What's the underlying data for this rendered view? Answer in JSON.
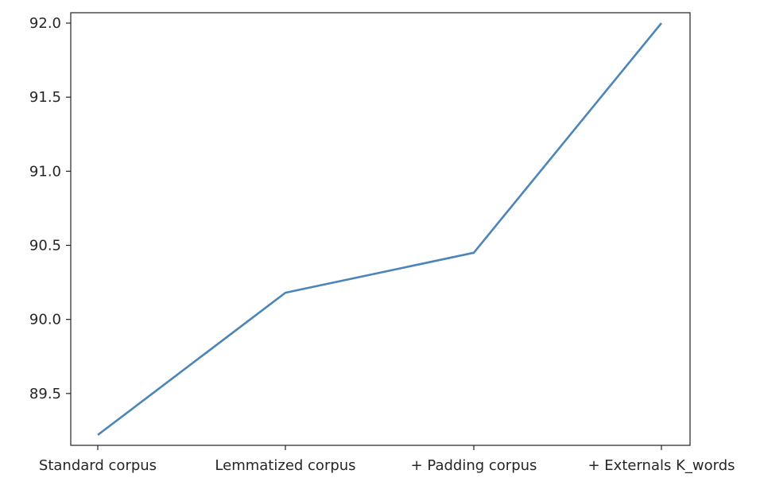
{
  "chart_data": {
    "type": "line",
    "title": "",
    "xlabel": "",
    "ylabel": "",
    "categories": [
      "Standard corpus",
      "Lemmatized corpus",
      "+ Padding corpus",
      "+ Externals K_words"
    ],
    "series": [
      {
        "values": [
          89.22,
          90.18,
          90.45,
          92.0
        ],
        "color": "#4c85b8"
      }
    ],
    "yticks": [
      "89.5",
      "90.0",
      "90.5",
      "91.0",
      "91.5",
      "92.0"
    ],
    "ylim": [
      89.15,
      92.07
    ],
    "grid": false,
    "legend": "none"
  }
}
